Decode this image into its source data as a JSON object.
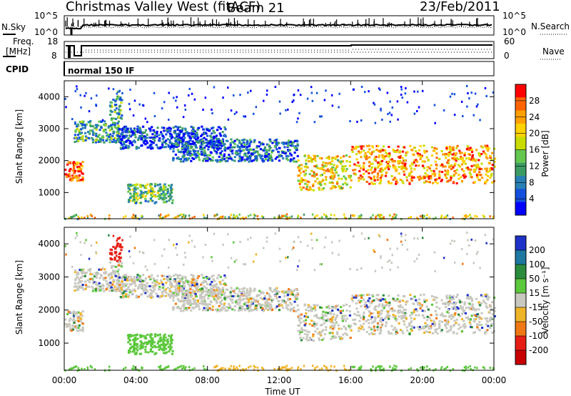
{
  "header": {
    "station": "Christmas Valley West (fitACF)",
    "beam": "Beam 21",
    "date": "23/Feb/2011"
  },
  "panels": {
    "nsky": {
      "label": "N.Sky",
      "ticks": [
        "10^5",
        "10^0"
      ],
      "right_label": "N.Search",
      "right_ticks": [
        "10^5",
        "10^0"
      ]
    },
    "freq": {
      "label_line1": "Freq.",
      "label_line2": "[MHz]",
      "ticks": [
        "18",
        "8"
      ],
      "right_label": "Nave",
      "right_ticks": [
        "60",
        "0"
      ]
    },
    "cpid": {
      "label": "CPID",
      "value": "normal 150 IF"
    }
  },
  "chart_data": [
    {
      "type": "heatmap",
      "name": "power",
      "ylabel": "Slant Range [km]",
      "xlabel": "",
      "ylim": [
        180,
        4500
      ],
      "yticks": [
        "1000",
        "2000",
        "3000",
        "4000"
      ],
      "xlim": [
        "00:00",
        "24:00"
      ],
      "colorbar": {
        "label": "Power [dB]",
        "ticks": [
          "28",
          "24",
          "20",
          "16",
          "12",
          "8",
          "4"
        ],
        "colors": [
          "#ff0000",
          "#ff6400",
          "#ffa000",
          "#ffd200",
          "#c8dc00",
          "#64c850",
          "#3c9c64",
          "#2880b4",
          "#1450dc",
          "#0000ff"
        ]
      },
      "echo_bands": [
        {
          "t_start": 0.0,
          "t_end": 1.0,
          "range_km": [
            1400,
            2000
          ],
          "power_db": 28
        },
        {
          "t_start": 0.5,
          "t_end": 3.0,
          "range_km": [
            2600,
            3300
          ],
          "power_db": 12
        },
        {
          "t_start": 2.5,
          "t_end": 3.2,
          "range_km": [
            3300,
            4200
          ],
          "power_db": 12
        },
        {
          "t_start": 3.5,
          "t_end": 6.0,
          "range_km": [
            700,
            1300
          ],
          "power_db": 14
        },
        {
          "t_start": 3.0,
          "t_end": 9.0,
          "range_km": [
            2400,
            3100
          ],
          "power_db": 6
        },
        {
          "t_start": 6.0,
          "t_end": 13.0,
          "range_km": [
            2000,
            2700
          ],
          "power_db": 8
        },
        {
          "t_start": 13.0,
          "t_end": 16.0,
          "range_km": [
            1100,
            2200
          ],
          "power_db": 20
        },
        {
          "t_start": 16.0,
          "t_end": 24.0,
          "range_km": [
            1300,
            2500
          ],
          "power_db": 24
        }
      ]
    },
    {
      "type": "heatmap",
      "name": "velocity",
      "ylabel": "Slant Range [km]",
      "xlabel": "Time UT",
      "ylim": [
        180,
        4500
      ],
      "yticks": [
        "1000",
        "2000",
        "3000",
        "4000"
      ],
      "xticks": [
        "00:00",
        "04:00",
        "08:00",
        "12:00",
        "16:00",
        "20:00",
        "00:00"
      ],
      "colorbar": {
        "label": "Velocity [m s⁻¹]",
        "ticks": [
          "200",
          "100",
          "50",
          "15",
          "-15",
          "-50",
          "-100",
          "-200"
        ],
        "colors": [
          "#1e32c8",
          "#1e78a0",
          "#2a8c3c",
          "#5cc83c",
          "#c8c8c0",
          "#f0b428",
          "#f07814",
          "#e61e14",
          "#c80000"
        ]
      }
    }
  ]
}
